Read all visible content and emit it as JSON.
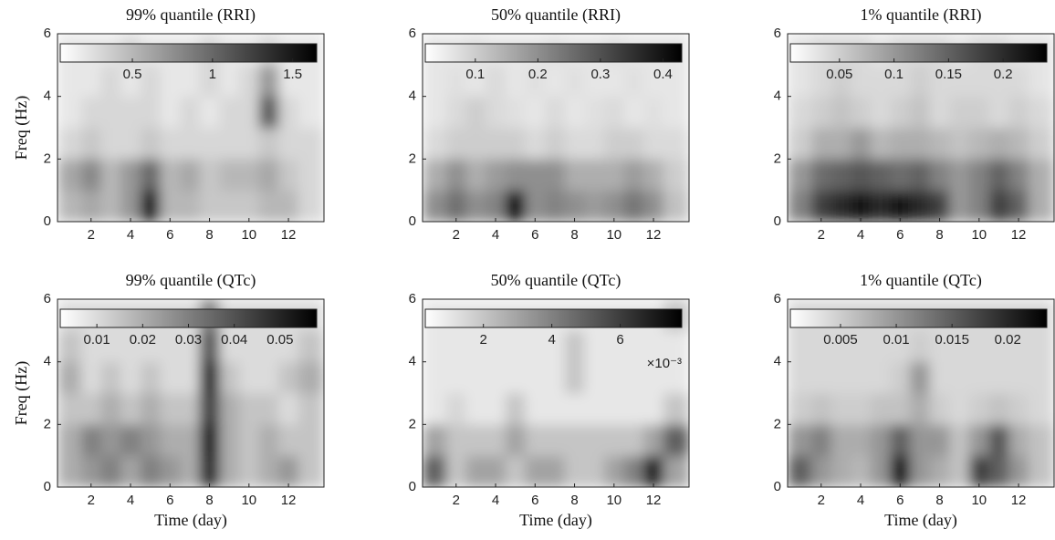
{
  "chart_data": [
    {
      "type": "heatmap",
      "title": "99% quantile (RRI)",
      "ylabel": "Freq (Hz)",
      "x": [
        1,
        2,
        3,
        4,
        5,
        6,
        7,
        8,
        9,
        10,
        11,
        12,
        13
      ],
      "y": [
        0.5,
        1.5,
        2.5,
        3.5,
        4.5,
        5.5
      ],
      "z": [
        [
          0.5,
          0.6,
          0.5,
          0.7,
          1.5,
          0.5,
          0.5,
          0.4,
          0.4,
          0.4,
          0.5,
          0.5,
          0.3
        ],
        [
          0.6,
          0.8,
          0.5,
          0.7,
          1.0,
          0.5,
          0.6,
          0.4,
          0.5,
          0.5,
          0.6,
          0.4,
          0.3
        ],
        [
          0.3,
          0.4,
          0.3,
          0.3,
          0.4,
          0.3,
          0.3,
          0.3,
          0.3,
          0.3,
          0.4,
          0.3,
          0.3
        ],
        [
          0.2,
          0.3,
          0.3,
          0.3,
          0.3,
          0.2,
          0.3,
          0.2,
          0.3,
          0.3,
          1.1,
          0.3,
          0.2
        ],
        [
          0.2,
          0.2,
          0.3,
          0.2,
          0.3,
          0.2,
          0.2,
          0.3,
          0.2,
          0.3,
          0.7,
          0.2,
          0.2
        ],
        [
          0.2,
          0.2,
          0.2,
          0.3,
          0.2,
          0.2,
          0.2,
          0.3,
          0.2,
          0.2,
          0.3,
          0.2,
          0.2
        ]
      ],
      "xlim": [
        0.3,
        13.8
      ],
      "xticks": [
        2,
        4,
        6,
        8,
        10,
        12
      ],
      "ylim": [
        0,
        6
      ],
      "yticks": [
        0,
        2,
        4,
        6
      ],
      "colormap": [
        "#ffffff",
        "#000000"
      ],
      "clim": [
        0.05,
        1.65
      ],
      "cticks": [
        0.5,
        1,
        1.5
      ]
    },
    {
      "type": "heatmap",
      "title": "50% quantile (RRI)",
      "x": [
        1,
        2,
        3,
        4,
        5,
        6,
        7,
        8,
        9,
        10,
        11,
        12,
        13
      ],
      "y": [
        0.5,
        1.5,
        2.5,
        3.5,
        4.5,
        5.5
      ],
      "z": [
        [
          0.2,
          0.25,
          0.2,
          0.22,
          0.42,
          0.2,
          0.22,
          0.2,
          0.18,
          0.2,
          0.24,
          0.2,
          0.12
        ],
        [
          0.15,
          0.2,
          0.15,
          0.18,
          0.2,
          0.2,
          0.2,
          0.15,
          0.15,
          0.15,
          0.18,
          0.15,
          0.1
        ],
        [
          0.08,
          0.1,
          0.1,
          0.1,
          0.1,
          0.08,
          0.1,
          0.08,
          0.08,
          0.1,
          0.1,
          0.08,
          0.08
        ],
        [
          0.06,
          0.08,
          0.1,
          0.08,
          0.07,
          0.06,
          0.08,
          0.06,
          0.07,
          0.08,
          0.06,
          0.07,
          0.06
        ],
        [
          0.06,
          0.07,
          0.06,
          0.08,
          0.06,
          0.07,
          0.06,
          0.07,
          0.06,
          0.06,
          0.07,
          0.06,
          0.06
        ],
        [
          0.06,
          0.06,
          0.07,
          0.06,
          0.06,
          0.06,
          0.07,
          0.06,
          0.06,
          0.07,
          0.06,
          0.06,
          0.06
        ]
      ],
      "xlim": [
        0.3,
        13.8
      ],
      "xticks": [
        2,
        4,
        6,
        8,
        10,
        12
      ],
      "ylim": [
        0,
        6
      ],
      "yticks": [
        0,
        2,
        4,
        6
      ],
      "colormap": [
        "#ffffff",
        "#000000"
      ],
      "clim": [
        0.02,
        0.43
      ],
      "cticks": [
        0.1,
        0.2,
        0.3,
        0.4
      ]
    },
    {
      "type": "heatmap",
      "title": "1% quantile (RRI)",
      "x": [
        1,
        2,
        3,
        4,
        5,
        6,
        7,
        8,
        9,
        10,
        11,
        12,
        13
      ],
      "y": [
        0.5,
        1.5,
        2.5,
        3.5,
        4.5,
        5.5
      ],
      "z": [
        [
          0.12,
          0.18,
          0.2,
          0.22,
          0.2,
          0.22,
          0.2,
          0.18,
          0.1,
          0.12,
          0.18,
          0.15,
          0.08
        ],
        [
          0.1,
          0.14,
          0.15,
          0.16,
          0.15,
          0.14,
          0.15,
          0.12,
          0.1,
          0.12,
          0.15,
          0.12,
          0.08
        ],
        [
          0.05,
          0.08,
          0.08,
          0.1,
          0.07,
          0.08,
          0.08,
          0.07,
          0.06,
          0.07,
          0.08,
          0.07,
          0.05
        ],
        [
          0.04,
          0.05,
          0.06,
          0.05,
          0.04,
          0.05,
          0.06,
          0.04,
          0.05,
          0.05,
          0.04,
          0.05,
          0.04
        ],
        [
          0.03,
          0.04,
          0.05,
          0.04,
          0.04,
          0.04,
          0.05,
          0.04,
          0.04,
          0.04,
          0.04,
          0.04,
          0.03
        ],
        [
          0.03,
          0.04,
          0.04,
          0.04,
          0.03,
          0.04,
          0.04,
          0.04,
          0.03,
          0.04,
          0.04,
          0.03,
          0.03
        ]
      ],
      "xlim": [
        0.3,
        13.8
      ],
      "xticks": [
        2,
        4,
        6,
        8,
        10,
        12
      ],
      "ylim": [
        0,
        6
      ],
      "yticks": [
        0,
        2,
        4,
        6
      ],
      "colormap": [
        "#ffffff",
        "#000000"
      ],
      "clim": [
        0.005,
        0.24
      ],
      "cticks": [
        0.05,
        0.1,
        0.15,
        0.2
      ]
    },
    {
      "type": "heatmap",
      "title": "99% quantile (QTc)",
      "xlabel": "Time (day)",
      "ylabel": "Freq (Hz)",
      "x": [
        1,
        2,
        3,
        4,
        5,
        6,
        7,
        8,
        9,
        10,
        11,
        12,
        13
      ],
      "y": [
        0.5,
        1.5,
        2.5,
        3.5,
        4.5,
        5.5
      ],
      "z": [
        [
          0.02,
          0.025,
          0.03,
          0.022,
          0.03,
          0.025,
          0.02,
          0.05,
          0.02,
          0.015,
          0.02,
          0.025,
          0.015
        ],
        [
          0.02,
          0.03,
          0.025,
          0.03,
          0.025,
          0.02,
          0.02,
          0.055,
          0.02,
          0.015,
          0.02,
          0.015,
          0.015
        ],
        [
          0.015,
          0.015,
          0.02,
          0.015,
          0.02,
          0.015,
          0.015,
          0.045,
          0.02,
          0.015,
          0.015,
          0.01,
          0.015
        ],
        [
          0.02,
          0.01,
          0.015,
          0.01,
          0.015,
          0.01,
          0.01,
          0.05,
          0.015,
          0.01,
          0.01,
          0.015,
          0.02
        ],
        [
          0.015,
          0.01,
          0.01,
          0.01,
          0.01,
          0.01,
          0.01,
          0.04,
          0.01,
          0.01,
          0.01,
          0.01,
          0.015
        ],
        [
          0.01,
          0.01,
          0.01,
          0.01,
          0.01,
          0.01,
          0.01,
          0.03,
          0.01,
          0.01,
          0.01,
          0.01,
          0.01
        ]
      ],
      "xlim": [
        0.3,
        13.8
      ],
      "xticks": [
        2,
        4,
        6,
        8,
        10,
        12
      ],
      "ylim": [
        0,
        6
      ],
      "yticks": [
        0,
        2,
        4,
        6
      ],
      "colormap": [
        "#ffffff",
        "#000000"
      ],
      "clim": [
        0.002,
        0.058
      ],
      "cticks": [
        0.01,
        0.02,
        0.03,
        0.04,
        0.05
      ]
    },
    {
      "type": "heatmap",
      "title": "50% quantile (QTc)",
      "xlabel": "Time (day)",
      "x": [
        1,
        2,
        3,
        4,
        5,
        6,
        7,
        8,
        9,
        10,
        11,
        12,
        13
      ],
      "y": [
        0.5,
        1.5,
        2.5,
        3.5,
        4.5,
        5.5
      ],
      "z": [
        [
          5,
          2,
          3,
          3,
          2,
          3,
          3,
          2,
          2,
          3,
          4,
          7,
          3
        ],
        [
          3,
          2,
          2,
          2,
          3,
          2,
          2,
          2,
          2,
          2,
          2,
          3,
          5
        ],
        [
          1,
          1.5,
          1,
          1,
          2,
          1,
          1,
          1,
          1,
          1,
          1,
          1,
          2
        ],
        [
          1,
          1,
          1,
          1,
          1,
          1,
          1,
          2,
          1,
          1,
          1,
          1,
          1
        ],
        [
          1,
          1,
          1,
          1,
          1,
          1,
          1,
          2,
          1,
          1,
          1,
          1,
          1
        ],
        [
          1,
          1,
          1,
          1,
          1,
          1,
          1,
          1,
          1,
          1,
          1,
          1,
          2
        ]
      ],
      "xlim": [
        0.3,
        13.8
      ],
      "xticks": [
        2,
        4,
        6,
        8,
        10,
        12
      ],
      "ylim": [
        0,
        6
      ],
      "yticks": [
        0,
        2,
        4,
        6
      ],
      "colormap": [
        "#ffffff",
        "#000000"
      ],
      "clim": [
        0.3,
        7.8
      ],
      "cticks": [
        2,
        4,
        6
      ],
      "colorbar_multiplier": "×10⁻³"
    },
    {
      "type": "heatmap",
      "title": "1% quantile (QTc)",
      "xlabel": "Time (day)",
      "x": [
        1,
        2,
        3,
        4,
        5,
        6,
        7,
        8,
        9,
        10,
        11,
        12,
        13
      ],
      "y": [
        0.5,
        1.5,
        2.5,
        3.5,
        4.5,
        5.5
      ],
      "z": [
        [
          0.015,
          0.01,
          0.008,
          0.007,
          0.01,
          0.022,
          0.01,
          0.008,
          0.006,
          0.018,
          0.015,
          0.01,
          0.006
        ],
        [
          0.01,
          0.012,
          0.008,
          0.008,
          0.01,
          0.015,
          0.01,
          0.01,
          0.006,
          0.01,
          0.016,
          0.008,
          0.006
        ],
        [
          0.005,
          0.006,
          0.005,
          0.005,
          0.006,
          0.006,
          0.008,
          0.005,
          0.004,
          0.005,
          0.006,
          0.005,
          0.004
        ],
        [
          0.004,
          0.004,
          0.004,
          0.004,
          0.004,
          0.005,
          0.01,
          0.004,
          0.004,
          0.004,
          0.004,
          0.004,
          0.004
        ],
        [
          0.004,
          0.004,
          0.004,
          0.004,
          0.004,
          0.004,
          0.005,
          0.004,
          0.004,
          0.004,
          0.004,
          0.004,
          0.004
        ],
        [
          0.004,
          0.004,
          0.004,
          0.004,
          0.004,
          0.004,
          0.004,
          0.004,
          0.004,
          0.004,
          0.004,
          0.004,
          0.004
        ]
      ],
      "xlim": [
        0.3,
        13.8
      ],
      "xticks": [
        2,
        4,
        6,
        8,
        10,
        12
      ],
      "ylim": [
        0,
        6
      ],
      "yticks": [
        0,
        2,
        4,
        6
      ],
      "colormap": [
        "#ffffff",
        "#000000"
      ],
      "clim": [
        0.0005,
        0.0235
      ],
      "cticks": [
        0.005,
        0.01,
        0.015,
        0.02
      ]
    }
  ]
}
